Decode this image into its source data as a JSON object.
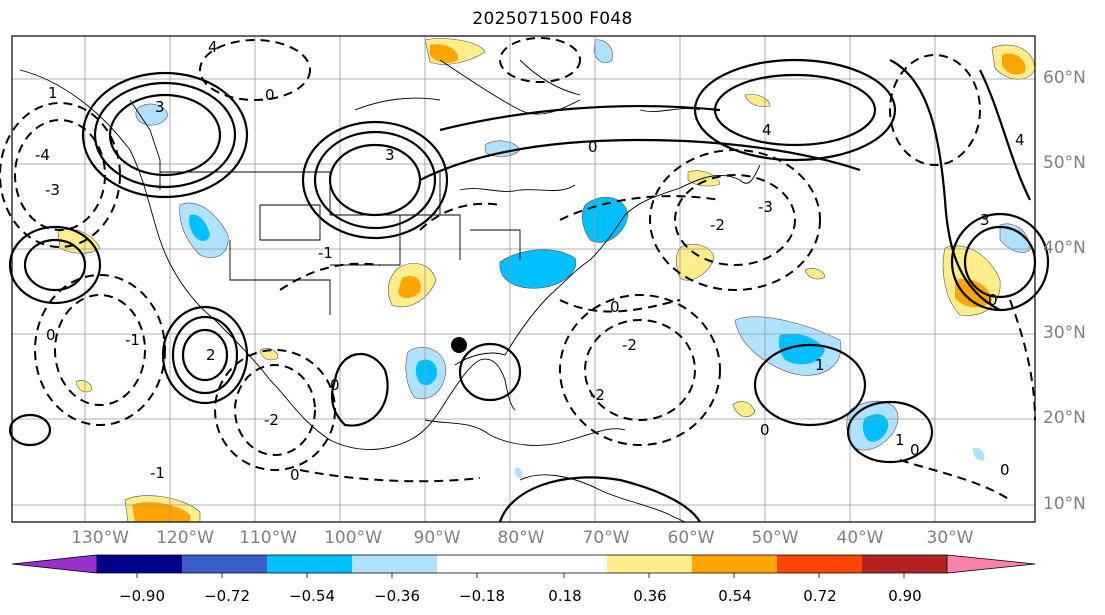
{
  "title": "2025071500 F048",
  "map": {
    "lat_labels": [
      "60°N",
      "50°N",
      "40°N",
      "30°N",
      "20°N",
      "10°N"
    ],
    "lon_labels": [
      "130°W",
      "120°W",
      "110°W",
      "100°W",
      "90°W",
      "80°W",
      "70°W",
      "60°W",
      "50°W",
      "40°W",
      "30°W"
    ],
    "contour_labels": [
      "0",
      "1",
      "2",
      "3",
      "-1",
      "-2",
      "-3",
      "-4",
      "4"
    ],
    "marker": "storm-center-dot"
  },
  "colorbar": {
    "ticks": [
      "−0.90",
      "−0.72",
      "−0.54",
      "−0.36",
      "−0.18",
      "0.18",
      "0.36",
      "0.54",
      "0.72",
      "0.90"
    ],
    "colors": [
      "#9932cc",
      "#00008b",
      "#3a5fcd",
      "#00bfff",
      "#b0e2ff",
      "#ffffff",
      "#ffec8b",
      "#ffa500",
      "#ff4500",
      "#b22222",
      "#ff82ab"
    ]
  }
}
